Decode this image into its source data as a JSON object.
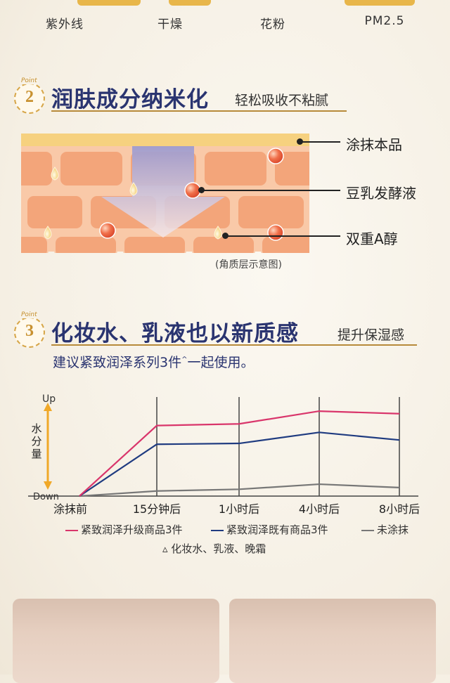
{
  "top_labels": [
    "紫外线",
    "干燥",
    "花粉",
    "PM2.5"
  ],
  "section2": {
    "point_label": "Point",
    "number": "2",
    "title": "润肤成分纳米化",
    "subtitle": "轻松吸收不粘腻",
    "labels": [
      "涂抹本品",
      "豆乳发酵液",
      "双重A醇"
    ],
    "caption": "(角质层示意图)"
  },
  "section3": {
    "point_label": "Point",
    "number": "3",
    "title": "化妆水、乳液也以新质感",
    "subtitle": "提升保湿感",
    "recommend_prefix": "建议紧致润泽系列3件",
    "recommend_mark": "^",
    "recommend_suffix": "一起使用。",
    "footnote": "▵ 化妆水、乳液、晚霜"
  },
  "chart_data": {
    "type": "line",
    "ylabel": "水分量",
    "y_top_label": "Up",
    "y_bottom_label": "Down",
    "categories": [
      "涂抹前",
      "15分钟后",
      "1小时后",
      "4小时后",
      "8小时后"
    ],
    "series": [
      {
        "name": "紧致润泽升级商品3件",
        "color": "#d9356b",
        "values": [
          0,
          0.83,
          0.85,
          1.0,
          0.97
        ]
      },
      {
        "name": "紧致润泽既有商品3件",
        "color": "#1f3b80",
        "values": [
          0,
          0.61,
          0.62,
          0.75,
          0.66
        ]
      },
      {
        "name": "未涂抹",
        "color": "#777777",
        "values": [
          0,
          0.06,
          0.08,
          0.14,
          0.1
        ]
      }
    ],
    "ylim": [
      0,
      1.1
    ],
    "grid": "vertical lines"
  },
  "colors": {
    "heading": "#2a3470",
    "gold": "#d6a547",
    "skin": "#f3a57a",
    "skin_top": "#f7d98b"
  }
}
